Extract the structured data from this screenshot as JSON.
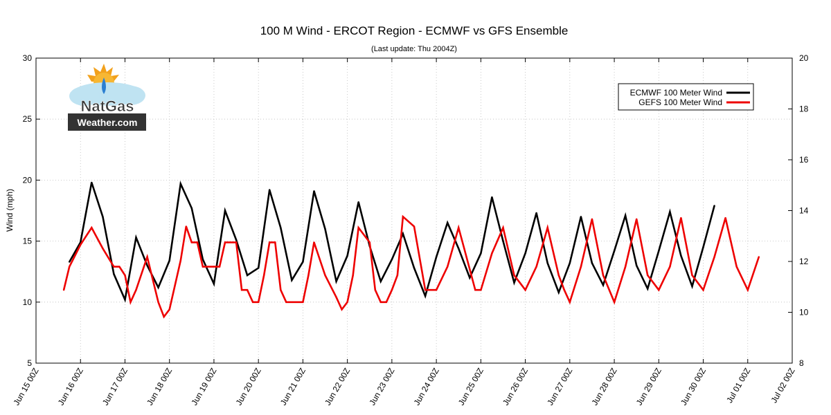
{
  "chart_data": {
    "type": "line",
    "title": "100 M Wind - ERCOT Region - ECMWF vs GFS Ensemble",
    "subtitle": "(Last update: Thu 2004Z)",
    "ylabel": "Wind (mph)",
    "ylim": [
      5,
      30
    ],
    "y2lim": [
      8,
      20
    ],
    "yticks": [
      5,
      10,
      15,
      20,
      25,
      30
    ],
    "y2ticks": [
      8,
      10,
      12,
      14,
      16,
      18,
      20
    ],
    "x_unit": "days from Jun 15 00Z",
    "xlim": [
      0,
      17
    ],
    "xticks": [
      "Jun 15 00Z",
      "Jun 16 00Z",
      "Jun 17 00Z",
      "Jun 18 00Z",
      "Jun 19 00Z",
      "Jun 20 00Z",
      "Jun 21 00Z",
      "Jun 22 00Z",
      "Jun 23 00Z",
      "Jun 24 00Z",
      "Jun 25 00Z",
      "Jun 26 00Z",
      "Jun 27 00Z",
      "Jun 28 00Z",
      "Jun 29 00Z",
      "Jun 30 00Z",
      "Jul 01 00Z",
      "Jul 02 00Z"
    ],
    "grid": true,
    "legend_position": "top-right",
    "series": [
      {
        "name": "ECMWF 100 Meter Wind",
        "color": "#000000",
        "x": [
          0.75,
          1.0,
          1.25,
          1.5,
          1.75,
          2.0,
          2.25,
          2.5,
          2.75,
          3.0,
          3.25,
          3.5,
          3.75,
          4.0,
          4.25,
          4.5,
          4.75,
          5.0,
          5.25,
          5.5,
          5.75,
          6.0,
          6.25,
          6.5,
          6.75,
          7.0,
          7.25,
          7.5,
          7.75,
          8.0,
          8.25,
          8.5,
          8.75,
          9.0,
          9.25,
          9.5,
          9.75,
          10.0,
          10.25,
          10.5,
          10.75,
          11.0,
          11.25,
          11.5,
          11.75,
          12.0,
          12.25,
          12.5,
          12.75,
          13.0,
          13.25,
          13.5,
          13.75,
          14.0,
          14.25,
          14.5,
          14.75,
          15.0,
          15.25
        ],
        "values": [
          13.3,
          14.9,
          19.8,
          17.0,
          12.3,
          10.2,
          15.3,
          13.0,
          11.2,
          13.4,
          19.7,
          17.7,
          13.5,
          11.5,
          17.5,
          15.1,
          12.2,
          12.8,
          19.2,
          16.1,
          11.8,
          13.3,
          19.1,
          16.0,
          11.7,
          13.8,
          18.2,
          14.6,
          11.7,
          13.5,
          15.6,
          12.8,
          10.5,
          13.7,
          16.5,
          14.4,
          12.0,
          14.0,
          18.6,
          15.0,
          11.6,
          14.0,
          17.3,
          13.2,
          10.8,
          13.2,
          17.0,
          13.2,
          11.4,
          14.2,
          17.1,
          13.0,
          11.1,
          14.2,
          17.4,
          13.8,
          11.3,
          14.5,
          17.9
        ]
      },
      {
        "name": "GEFS 100 Meter Wind",
        "color": "#ee0000",
        "x": [
          0.625,
          0.75,
          1.0,
          1.25,
          1.5,
          1.75,
          1.875,
          2.0,
          2.125,
          2.25,
          2.5,
          2.75,
          2.875,
          3.0,
          3.25,
          3.375,
          3.5,
          3.625,
          3.75,
          4.0,
          4.125,
          4.25,
          4.5,
          4.625,
          4.75,
          4.875,
          5.0,
          5.125,
          5.25,
          5.375,
          5.5,
          5.625,
          5.75,
          6.0,
          6.125,
          6.25,
          6.5,
          6.75,
          6.875,
          7.0,
          7.125,
          7.25,
          7.5,
          7.625,
          7.75,
          7.875,
          8.0,
          8.125,
          8.25,
          8.5,
          8.75,
          8.875,
          9.0,
          9.25,
          9.5,
          9.625,
          9.875,
          10.0,
          10.25,
          10.5,
          10.75,
          10.875,
          11.0,
          11.25,
          11.5,
          11.75,
          11.875,
          12.0,
          12.25,
          12.5,
          12.75,
          13.0,
          13.25,
          13.5,
          13.75,
          13.875,
          14.0,
          14.25,
          14.5,
          14.75,
          15.0,
          15.25,
          15.5,
          15.75,
          16.0,
          16.25
        ],
        "values": [
          11.0,
          12.9,
          14.7,
          16.1,
          14.4,
          12.9,
          12.9,
          12.2,
          10.0,
          11.0,
          13.7,
          10.0,
          8.8,
          9.4,
          13.4,
          16.2,
          14.9,
          14.9,
          12.9,
          12.9,
          12.9,
          14.9,
          14.9,
          11.0,
          11.0,
          10.0,
          10.0,
          12.2,
          14.9,
          14.9,
          11.0,
          10.0,
          10.0,
          10.0,
          12.2,
          14.9,
          12.2,
          10.4,
          9.4,
          10.0,
          12.2,
          16.1,
          14.9,
          11.0,
          10.0,
          10.0,
          11.0,
          12.2,
          17.0,
          16.2,
          11.0,
          11.0,
          11.0,
          12.9,
          16.1,
          14.4,
          11.0,
          11.0,
          14.0,
          16.1,
          12.2,
          11.6,
          11.0,
          12.9,
          16.1,
          12.2,
          11.0,
          10.0,
          12.9,
          16.8,
          12.2,
          10.0,
          12.9,
          16.8,
          12.2,
          11.6,
          11.0,
          12.9,
          16.9,
          12.2,
          11.0,
          13.7,
          16.9,
          12.9,
          11.0,
          13.7
        ]
      }
    ]
  },
  "logo": {
    "line1": "NatGas",
    "line2": "Weather.com"
  }
}
